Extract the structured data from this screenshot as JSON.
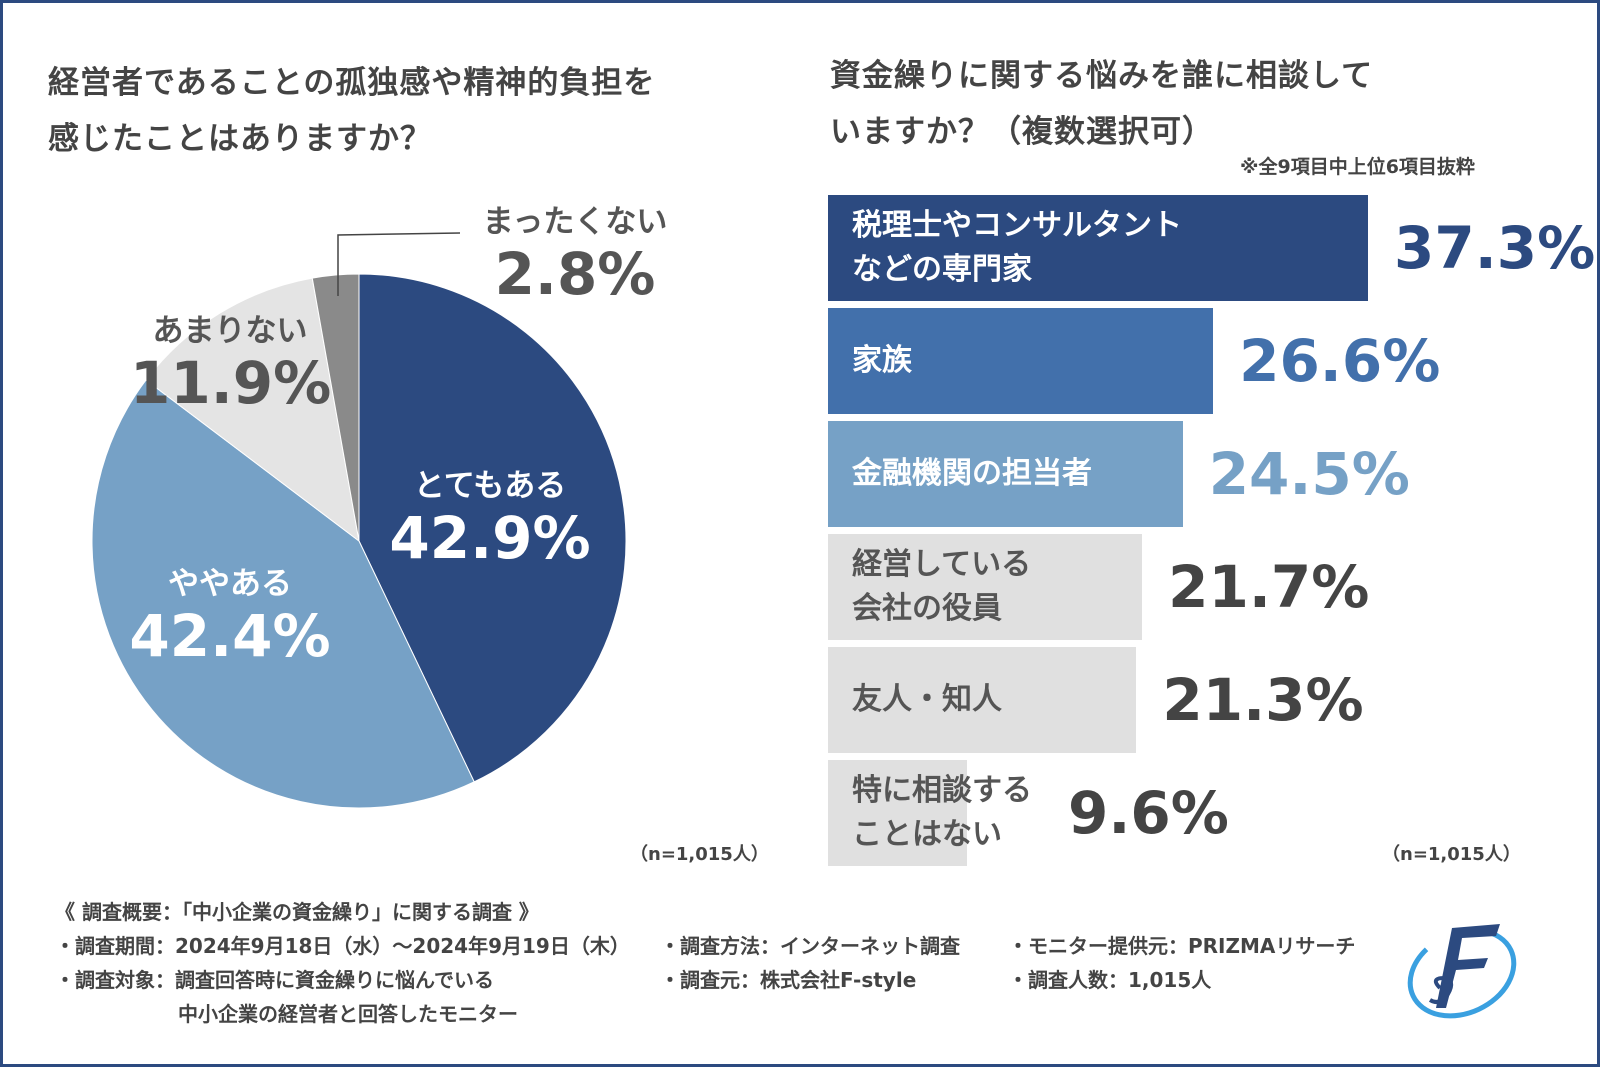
{
  "left": {
    "title": "経営者であることの孤独感や精神的負担を\n感じたことはありますか？",
    "n_label": "（n=1,015人）"
  },
  "right": {
    "title": "資金繰りに関する悩みを誰に相談して\nいますか？（複数選択可）",
    "note": "※全9項目中上位6項目抜粋",
    "n_label": "（n=1,015人）"
  },
  "chart_data": [
    {
      "type": "pie",
      "title": "経営者であることの孤独感や精神的負担を感じたことはありますか？",
      "labels": [
        "とてもある",
        "ややある",
        "あまりない",
        "まったくない"
      ],
      "values": [
        42.9,
        42.4,
        11.9,
        2.8
      ],
      "value_labels": [
        "42.9%",
        "42.4%",
        "11.9%",
        "2.8%"
      ],
      "colors": [
        "#2c4a80",
        "#76a1c6",
        "#e4e4e4",
        "#8a8a8a"
      ],
      "start": "top",
      "direction": "clockwise"
    },
    {
      "type": "bar",
      "orientation": "horizontal",
      "title": "資金繰りに関する悩みを誰に相談していますか？（複数選択可）",
      "categories": [
        "税理士やコンサルタント\nなどの専門家",
        "家族",
        "金融機関の担当者",
        "経営している\n会社の役員",
        "友人・知人",
        "特に相談する\nことはない"
      ],
      "values": [
        37.3,
        26.6,
        24.5,
        21.7,
        21.3,
        9.6
      ],
      "value_labels": [
        "37.3%",
        "26.6%",
        "24.5%",
        "21.7%",
        "21.3%",
        "9.6%"
      ],
      "bar_colors": [
        "#2c4a80",
        "#4270ab",
        "#76a1c6",
        "#e0e0e0",
        "#e0e0e0",
        "#e0e0e0"
      ],
      "label_colors": [
        "#ffffff",
        "#ffffff",
        "#ffffff",
        "#555555",
        "#555555",
        "#555555"
      ],
      "value_colors": [
        "#2c4a80",
        "#4270ab",
        "#76a1c6",
        "#444444",
        "#444444",
        "#444444"
      ]
    }
  ],
  "footer": {
    "heading": "《 調査概要：「中小企業の資金繰り」に関する調査 》",
    "period": "・調査期間：2024年9月18日（水）～2024年9月19日（木）",
    "method": "・調査方法：インターネット調査",
    "provider": "・モニター提供元：PRIZMAリサーチ",
    "target": "・調査対象：調査回答時に資金繰りに悩んでいる",
    "target2": "中小企業の経営者と回答したモニター",
    "source": "・調査元：株式会社F-style",
    "count": "・調査人数：1,015人"
  },
  "logo": {
    "text": "F-style",
    "icon": "f-style-logo"
  }
}
